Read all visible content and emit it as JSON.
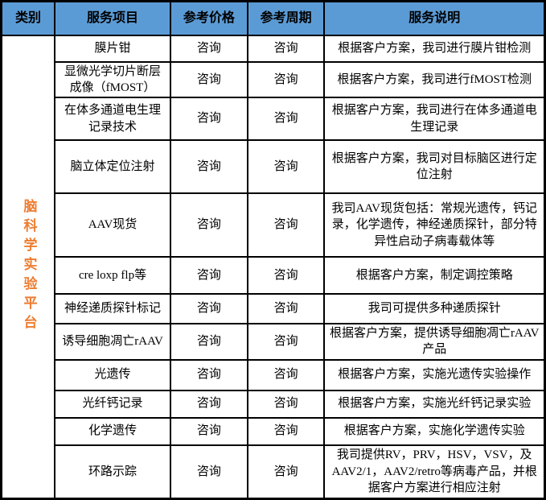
{
  "table": {
    "headers": {
      "category": "类别",
      "item": "服务项目",
      "price": "参考价格",
      "period": "参考周期",
      "desc": "服务说明"
    },
    "category_label": "脑科学实验平台",
    "rows": [
      {
        "item": "膜片钳",
        "price": "咨询",
        "period": "咨询",
        "desc": "根据客户方案，我司进行膜片钳检测"
      },
      {
        "item": "显微光学切片断层成像（fMOST）",
        "price": "咨询",
        "period": "咨询",
        "desc": "根据客户方案，我司进行fMOST检测"
      },
      {
        "item": "在体多通道电生理记录技术",
        "price": "咨询",
        "period": "咨询",
        "desc": "根据客户方案，我司进行在体多通道电生理记录"
      },
      {
        "item": "脑立体定位注射",
        "price": "咨询",
        "period": "咨询",
        "desc": "根据客户方案，我司对目标脑区进行定位注射"
      },
      {
        "item": "AAV现货",
        "price": "咨询",
        "period": "咨询",
        "desc": "我司AAV现货包括：常规光遗传，钙记录，化学遗传，神经递质探针，部分特异性启动子病毒载体等"
      },
      {
        "item": "cre loxp flp等",
        "price": "咨询",
        "period": "咨询",
        "desc": "根据客户方案，制定调控策略"
      },
      {
        "item": "神经递质探针标记",
        "price": "咨询",
        "period": "咨询",
        "desc": "我司可提供多种递质探针"
      },
      {
        "item": "诱导细胞凋亡rAAV",
        "price": "咨询",
        "period": "咨询",
        "desc": "根据客户方案，提供诱导细胞凋亡rAAV产品"
      },
      {
        "item": "光遗传",
        "price": "咨询",
        "period": "咨询",
        "desc": "根据客户方案，实施光遗传实验操作"
      },
      {
        "item": "光纤钙记录",
        "price": "咨询",
        "period": "咨询",
        "desc": "根据客户方案，实施光纤钙记录实验"
      },
      {
        "item": "化学遗传",
        "price": "咨询",
        "period": "咨询",
        "desc": "根据客户方案，实施化学遗传实验"
      },
      {
        "item": "环路示踪",
        "price": "咨询",
        "period": "咨询",
        "desc": "我司提供RV，PRV，HSV，VSV，及AAV2/1，AAV2/retro等病毒产品，并根据客户方案进行相应注射"
      }
    ],
    "colors": {
      "header_bg": "#5B9BD5",
      "category_text": "#ED7D31",
      "border": "#000000"
    }
  }
}
